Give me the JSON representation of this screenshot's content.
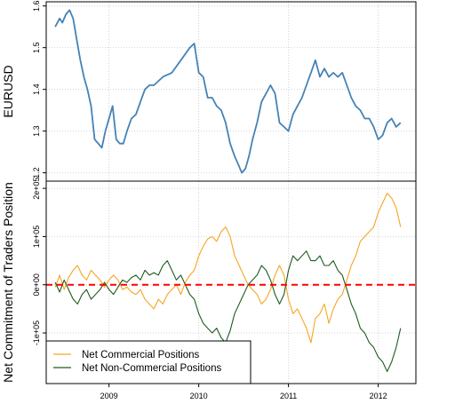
{
  "chart_data": [
    {
      "type": "line",
      "ylabel": "EURUSD",
      "ylim": [
        1.18,
        1.61
      ],
      "yticks": [
        1.2,
        1.3,
        1.4,
        1.5,
        1.6
      ],
      "ytick_labels": [
        "1.2",
        "1.3",
        "1.4",
        "1.5",
        "1.6"
      ],
      "xlim": [
        2008.3,
        2012.42
      ],
      "grid": true,
      "series": [
        {
          "color": "#4682b4",
          "x": [
            2008.4,
            2008.45,
            2008.48,
            2008.52,
            2008.56,
            2008.6,
            2008.64,
            2008.68,
            2008.72,
            2008.76,
            2008.8,
            2008.84,
            2008.88,
            2008.92,
            2008.96,
            2009.0,
            2009.04,
            2009.08,
            2009.12,
            2009.16,
            2009.2,
            2009.25,
            2009.3,
            2009.35,
            2009.4,
            2009.45,
            2009.5,
            2009.6,
            2009.7,
            2009.8,
            2009.9,
            2009.95,
            2010.0,
            2010.05,
            2010.1,
            2010.15,
            2010.2,
            2010.25,
            2010.3,
            2010.35,
            2010.4,
            2010.44,
            2010.48,
            2010.52,
            2010.56,
            2010.6,
            2010.65,
            2010.7,
            2010.75,
            2010.8,
            2010.85,
            2010.9,
            2010.95,
            2011.0,
            2011.05,
            2011.1,
            2011.15,
            2011.2,
            2011.25,
            2011.3,
            2011.35,
            2011.4,
            2011.45,
            2011.5,
            2011.55,
            2011.6,
            2011.65,
            2011.7,
            2011.75,
            2011.8,
            2011.85,
            2011.9,
            2011.95,
            2012.0,
            2012.05,
            2012.1,
            2012.15,
            2012.2,
            2012.25
          ],
          "y": [
            1.55,
            1.57,
            1.56,
            1.58,
            1.59,
            1.57,
            1.52,
            1.47,
            1.43,
            1.4,
            1.36,
            1.28,
            1.27,
            1.26,
            1.3,
            1.33,
            1.36,
            1.28,
            1.27,
            1.27,
            1.3,
            1.33,
            1.34,
            1.37,
            1.4,
            1.41,
            1.41,
            1.43,
            1.44,
            1.47,
            1.5,
            1.51,
            1.44,
            1.43,
            1.38,
            1.38,
            1.36,
            1.35,
            1.32,
            1.27,
            1.24,
            1.22,
            1.2,
            1.21,
            1.24,
            1.28,
            1.32,
            1.37,
            1.39,
            1.41,
            1.39,
            1.32,
            1.31,
            1.3,
            1.34,
            1.36,
            1.38,
            1.41,
            1.44,
            1.47,
            1.43,
            1.45,
            1.43,
            1.44,
            1.43,
            1.44,
            1.41,
            1.38,
            1.36,
            1.35,
            1.33,
            1.33,
            1.31,
            1.28,
            1.29,
            1.32,
            1.33,
            1.31,
            1.32
          ]
        }
      ]
    },
    {
      "type": "line",
      "ylabel": "Net Commitment of Traders Position",
      "ylim": [
        -205000,
        215000
      ],
      "yticks": [
        -100000,
        0,
        100000,
        200000
      ],
      "ytick_labels": [
        "-1e+05",
        "0e+00",
        "1e+05",
        "2e+05"
      ],
      "xlim": [
        2008.3,
        2012.42
      ],
      "xticks": [
        2009,
        2010,
        2011,
        2012
      ],
      "xtick_labels": [
        "2009",
        "2010",
        "2011",
        "2012"
      ],
      "grid": true,
      "reference_line": {
        "y": 0,
        "color": "#ff0000"
      },
      "legend_placement": "bottom-left",
      "series": [
        {
          "name": "Net Commercial Positions",
          "color": "#f5a623",
          "x": [
            2008.4,
            2008.45,
            2008.5,
            2008.55,
            2008.6,
            2008.65,
            2008.7,
            2008.75,
            2008.8,
            2008.85,
            2008.9,
            2008.95,
            2009.0,
            2009.05,
            2009.1,
            2009.15,
            2009.2,
            2009.25,
            2009.3,
            2009.35,
            2009.4,
            2009.45,
            2009.5,
            2009.55,
            2009.6,
            2009.65,
            2009.7,
            2009.75,
            2009.8,
            2009.85,
            2009.9,
            2009.95,
            2010.0,
            2010.05,
            2010.1,
            2010.15,
            2010.2,
            2010.25,
            2010.3,
            2010.35,
            2010.4,
            2010.45,
            2010.5,
            2010.55,
            2010.6,
            2010.65,
            2010.7,
            2010.75,
            2010.8,
            2010.85,
            2010.9,
            2010.95,
            2011.0,
            2011.05,
            2011.1,
            2011.15,
            2011.2,
            2011.25,
            2011.3,
            2011.35,
            2011.4,
            2011.45,
            2011.5,
            2011.55,
            2011.6,
            2011.65,
            2011.7,
            2011.75,
            2011.8,
            2011.85,
            2011.9,
            2011.95,
            2012.0,
            2012.05,
            2012.1,
            2012.15,
            2012.2,
            2012.25
          ],
          "y": [
            -5000,
            20000,
            -10000,
            15000,
            30000,
            40000,
            20000,
            10000,
            30000,
            20000,
            10000,
            -5000,
            10000,
            20000,
            10000,
            -10000,
            -5000,
            -15000,
            -20000,
            -10000,
            -30000,
            -40000,
            -50000,
            -30000,
            -40000,
            -20000,
            -10000,
            0,
            -20000,
            5000,
            20000,
            30000,
            60000,
            80000,
            95000,
            100000,
            90000,
            110000,
            120000,
            100000,
            60000,
            40000,
            20000,
            0,
            -10000,
            -20000,
            -40000,
            -30000,
            -10000,
            20000,
            40000,
            20000,
            -30000,
            -60000,
            -50000,
            -70000,
            -90000,
            -120000,
            -70000,
            -60000,
            -40000,
            -80000,
            -50000,
            -30000,
            -20000,
            10000,
            40000,
            60000,
            90000,
            100000,
            110000,
            120000,
            150000,
            170000,
            190000,
            180000,
            160000,
            120000
          ]
        },
        {
          "name": "Net Non-Commercial Positions",
          "color": "#1f5c1f",
          "x": [
            2008.4,
            2008.45,
            2008.5,
            2008.55,
            2008.6,
            2008.65,
            2008.7,
            2008.75,
            2008.8,
            2008.85,
            2008.9,
            2008.95,
            2009.0,
            2009.05,
            2009.1,
            2009.15,
            2009.2,
            2009.25,
            2009.3,
            2009.35,
            2009.4,
            2009.45,
            2009.5,
            2009.55,
            2009.6,
            2009.65,
            2009.7,
            2009.75,
            2009.8,
            2009.85,
            2009.9,
            2009.95,
            2010.0,
            2010.05,
            2010.1,
            2010.15,
            2010.2,
            2010.25,
            2010.3,
            2010.35,
            2010.4,
            2010.45,
            2010.5,
            2010.55,
            2010.6,
            2010.65,
            2010.7,
            2010.75,
            2010.8,
            2010.85,
            2010.9,
            2010.95,
            2011.0,
            2011.05,
            2011.1,
            2011.15,
            2011.2,
            2011.25,
            2011.3,
            2011.35,
            2011.4,
            2011.45,
            2011.5,
            2011.55,
            2011.6,
            2011.65,
            2011.7,
            2011.75,
            2011.8,
            2011.85,
            2011.9,
            2011.95,
            2012.0,
            2012.05,
            2012.1,
            2012.15,
            2012.2,
            2012.25
          ],
          "y": [
            5000,
            -15000,
            10000,
            -10000,
            -30000,
            -40000,
            -20000,
            -10000,
            -30000,
            -20000,
            -10000,
            5000,
            -10000,
            -20000,
            -5000,
            10000,
            5000,
            15000,
            20000,
            10000,
            30000,
            20000,
            25000,
            20000,
            40000,
            50000,
            30000,
            10000,
            20000,
            0,
            -20000,
            -30000,
            -60000,
            -80000,
            -90000,
            -100000,
            -90000,
            -110000,
            -120000,
            -95000,
            -60000,
            -40000,
            -20000,
            0,
            10000,
            20000,
            40000,
            30000,
            10000,
            -20000,
            -40000,
            -20000,
            30000,
            60000,
            50000,
            60000,
            70000,
            50000,
            50000,
            60000,
            40000,
            40000,
            50000,
            30000,
            20000,
            -10000,
            -40000,
            -60000,
            -90000,
            -100000,
            -120000,
            -130000,
            -150000,
            -160000,
            -180000,
            -160000,
            -130000,
            -90000
          ]
        }
      ]
    }
  ]
}
